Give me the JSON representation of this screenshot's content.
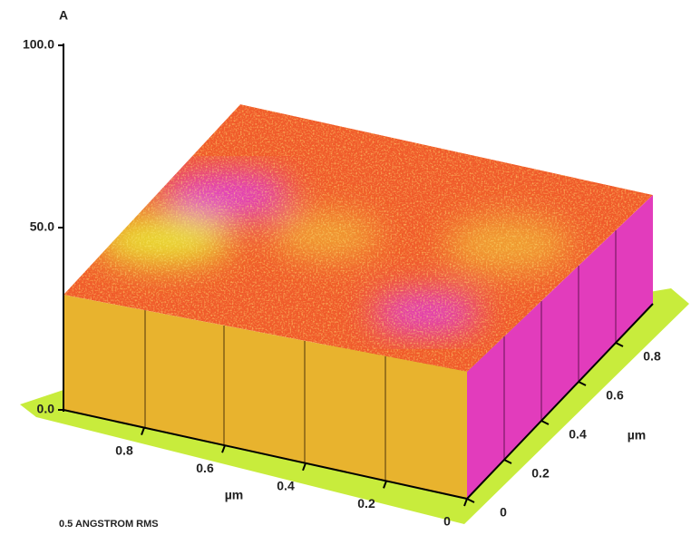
{
  "chart_data": {
    "type": "surface3d",
    "z_label": "A",
    "zlim": [
      0,
      100
    ],
    "zticks": [
      {
        "value": 0,
        "label": "0.0"
      },
      {
        "value": 50,
        "label": "50.0"
      },
      {
        "value": 100,
        "label": "100.0"
      }
    ],
    "x_label": "µm",
    "xlim": [
      0,
      1
    ],
    "xticks": [
      0.8,
      0.6,
      0.4,
      0.2,
      0
    ],
    "y_label": "µm",
    "ylim": [
      0,
      1
    ],
    "yticks": [
      0,
      0.2,
      0.4,
      0.6,
      0.8
    ],
    "annotation": "0.5 ANGSTROM RMS"
  }
}
